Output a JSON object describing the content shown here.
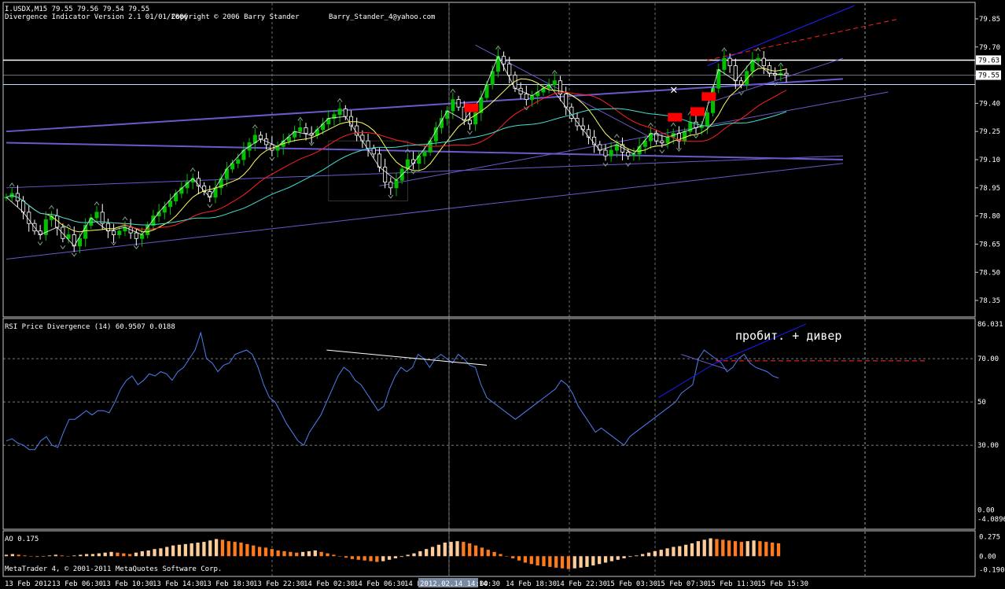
{
  "header": {
    "symbol_line": "I.USDX,M15  79.55 79.56 79.54 79.55",
    "indicator_line": "Divergence Indicator Version 2.1  01/01/2006",
    "copyright": "Copyright © 2006 Barry Stander",
    "email": "Barry_Stander_4@yahoo.com"
  },
  "footer": {
    "metatrader": "MetaTrader 4, © 2001-2011 MetaQuotes Software Corp."
  },
  "colors": {
    "background": "#000000",
    "grid": "#c8c8c8",
    "candle_up": "#00c000",
    "candle_down": "#ffffff",
    "ma_fast": "#ffff66",
    "ma_mid": "#ff2020",
    "ma_slow": "#40e0d0",
    "trend": "#6a5acd",
    "rsi": "#4f7ff0",
    "ao_up": "#ffcc99",
    "ao_down": "#ff7a1a",
    "marker": "#ff0000"
  },
  "chart_data": [
    {
      "type": "line",
      "title": "I.USDX,M15",
      "ylim": [
        78.3,
        79.9
      ],
      "y_ticks": [
        "79.85",
        "79.70",
        "79.55",
        "79.40",
        "79.25",
        "79.10",
        "78.95",
        "78.80",
        "78.65",
        "78.50",
        "78.35"
      ],
      "price_labels": [
        "79.63",
        "79.55"
      ],
      "x_labels": [
        "13 Feb 2012",
        "13 Feb 06:30",
        "13 Feb 10:30",
        "13 Feb 14:30",
        "13 Feb 18:30",
        "13 Feb 22:30",
        "14 Feb 02:30",
        "14 Feb 06:30",
        "14 F",
        "2012.02.14 14:00",
        "14:30",
        "14 Feb 18:30",
        "14 Feb 22:30",
        "15 Feb 03:30",
        "15 Feb 07:30",
        "15 Feb 11:30",
        "15 Feb 15:30"
      ],
      "close": [
        78.9,
        78.92,
        78.88,
        78.82,
        78.76,
        78.72,
        78.7,
        78.78,
        78.8,
        78.74,
        78.68,
        78.7,
        78.64,
        78.68,
        78.75,
        78.79,
        78.82,
        78.76,
        78.72,
        78.7,
        78.72,
        78.74,
        78.71,
        78.68,
        78.7,
        78.75,
        78.8,
        78.82,
        78.85,
        78.88,
        78.92,
        78.95,
        78.98,
        79.0,
        78.96,
        78.93,
        78.9,
        78.95,
        79.0,
        79.05,
        79.08,
        79.1,
        79.15,
        79.19,
        79.23,
        79.21,
        79.18,
        79.15,
        79.17,
        79.2,
        79.22,
        79.25,
        79.27,
        79.24,
        79.23,
        79.26,
        79.29,
        79.32,
        79.34,
        79.37,
        79.33,
        79.28,
        79.23,
        79.2,
        79.16,
        79.13,
        79.06,
        78.98,
        78.95,
        78.99,
        79.05,
        79.1,
        79.08,
        79.12,
        79.14,
        79.2,
        79.27,
        79.32,
        79.36,
        79.42,
        79.38,
        79.31,
        79.29,
        79.35,
        79.43,
        79.5,
        79.57,
        79.65,
        79.61,
        79.55,
        79.48,
        79.45,
        79.42,
        79.44,
        79.46,
        79.48,
        79.5,
        79.52,
        79.45,
        79.38,
        79.32,
        79.28,
        79.26,
        79.22,
        79.18,
        79.15,
        79.12,
        79.15,
        79.18,
        79.14,
        79.12,
        79.13,
        79.17,
        79.2,
        79.24,
        79.2,
        79.19,
        79.22,
        79.24,
        79.2,
        79.25,
        79.3,
        79.27,
        79.28,
        79.35,
        79.48,
        79.58,
        79.64,
        79.6,
        79.52,
        79.5,
        79.57,
        79.63,
        79.64,
        79.6,
        79.56,
        79.55,
        79.56,
        79.55
      ],
      "series": [
        {
          "name": "",
          "role": "ma_fast",
          "period": 8
        },
        {
          "name": "",
          "role": "ma_mid",
          "period": 21
        },
        {
          "name": "",
          "role": "ma_slow",
          "period": 34
        }
      ],
      "trendlines": [
        {
          "from": [
            0,
            79.25
          ],
          "to": [
            148,
            79.53
          ],
          "style": "solid",
          "width": 2
        },
        {
          "from": [
            0,
            79.19
          ],
          "to": [
            148,
            79.1
          ],
          "style": "solid",
          "width": 2
        },
        {
          "from": [
            0,
            78.57
          ],
          "to": [
            148,
            79.08
          ],
          "style": "solid",
          "width": 1
        },
        {
          "from": [
            0,
            78.95
          ],
          "to": [
            148,
            79.12
          ],
          "style": "solid",
          "width": 1
        },
        {
          "from": [
            83,
            79.71
          ],
          "to": [
            117,
            79.17
          ],
          "style": "solid",
          "width": 1
        },
        {
          "from": [
            66,
            78.96
          ],
          "to": [
            156,
            79.46
          ],
          "style": "solid",
          "width": 1
        },
        {
          "from": [
            124,
            79.4
          ],
          "to": [
            148,
            79.64
          ],
          "style": "solid",
          "width": 1
        },
        {
          "from": [
            124,
            79.6
          ],
          "to": [
            150,
            79.92
          ],
          "style": "solid",
          "width": 1
        },
        {
          "from": [
            124,
            79.63
          ],
          "to": [
            158,
            79.85
          ],
          "style": "dashed",
          "width": 1
        }
      ],
      "highlight_box": {
        "from": [
          57,
          79.2
        ],
        "to": [
          71,
          78.88
        ]
      },
      "peak_markers": [
        82,
        118,
        122,
        124
      ]
    },
    {
      "type": "line",
      "title": "RSI Price Divergence (14) 60.9507 0.0188",
      "ylim": [
        -4.0896,
        86.031
      ],
      "y_ticks": [
        "86.031",
        "70.00",
        "50",
        "30.00",
        "0.00",
        "-4.0896"
      ],
      "levels": [
        70,
        50,
        30
      ],
      "annotation": "пробит. + дивер",
      "values": [
        32,
        33,
        31,
        30,
        28,
        28,
        32,
        34,
        30,
        29,
        36,
        42,
        42,
        44,
        46,
        44,
        46,
        46,
        45,
        50,
        56,
        60,
        62,
        58,
        60,
        63,
        62,
        64,
        63,
        60,
        64,
        66,
        70,
        74,
        82,
        70,
        68,
        64,
        67,
        68,
        72,
        73,
        74,
        72,
        66,
        58,
        52,
        50,
        45,
        40,
        36,
        32,
        30,
        36,
        40,
        44,
        50,
        56,
        62,
        66,
        64,
        60,
        58,
        54,
        50,
        46,
        48,
        56,
        62,
        66,
        64,
        66,
        72,
        70,
        66,
        70,
        72,
        70,
        68,
        72,
        70,
        67,
        66,
        58,
        52,
        50,
        48,
        46,
        44,
        42,
        44,
        46,
        48,
        50,
        52,
        54,
        56,
        60,
        58,
        54,
        48,
        44,
        40,
        36,
        38,
        36,
        34,
        32,
        30,
        34,
        36,
        38,
        40,
        42,
        44,
        46,
        48,
        50,
        54,
        56,
        58,
        70,
        74,
        72,
        70,
        68,
        64,
        66,
        70,
        72,
        68,
        66,
        65,
        64,
        62,
        61
      ],
      "trendlines": [
        {
          "from": [
            56,
            74
          ],
          "to": [
            84,
            67
          ],
          "color": "#ffffff",
          "style": "solid"
        },
        {
          "from": [
            114,
            52
          ],
          "to": [
            124,
            68
          ],
          "color": "#1a1aff",
          "style": "solid"
        },
        {
          "from": [
            124,
            68
          ],
          "to": [
            140,
            86
          ],
          "color": "#1a1aff",
          "style": "solid"
        },
        {
          "from": [
            118,
            72
          ],
          "to": [
            126,
            65
          ],
          "color": "#6a5acd",
          "style": "solid"
        },
        {
          "from": [
            124,
            69
          ],
          "to": [
            162,
            69
          ],
          "color": "#ff3030",
          "style": "dashed"
        }
      ]
    },
    {
      "type": "bar",
      "title": "AO 0.175",
      "ylim": [
        -0.25,
        0.3
      ],
      "y_ticks": [
        "0.275",
        "0.00",
        "-0.190"
      ],
      "values": [
        0.02,
        0.03,
        0.02,
        0.01,
        0.0,
        -0.01,
        0.0,
        0.01,
        0.02,
        0.01,
        0.0,
        0.01,
        0.02,
        0.03,
        0.03,
        0.04,
        0.05,
        0.06,
        0.05,
        0.04,
        0.03,
        0.05,
        0.07,
        0.08,
        0.1,
        0.11,
        0.13,
        0.15,
        0.16,
        0.17,
        0.18,
        0.19,
        0.2,
        0.22,
        0.24,
        0.23,
        0.21,
        0.2,
        0.19,
        0.17,
        0.15,
        0.13,
        0.12,
        0.1,
        0.08,
        0.07,
        0.06,
        0.05,
        0.06,
        0.07,
        0.08,
        0.06,
        0.04,
        0.02,
        0.0,
        -0.02,
        -0.04,
        -0.05,
        -0.06,
        -0.07,
        -0.08,
        -0.07,
        -0.05,
        -0.03,
        -0.01,
        0.02,
        0.04,
        0.07,
        0.1,
        0.13,
        0.16,
        0.19,
        0.2,
        0.21,
        0.2,
        0.18,
        0.15,
        0.12,
        0.09,
        0.06,
        0.03,
        0.0,
        -0.03,
        -0.06,
        -0.09,
        -0.11,
        -0.13,
        -0.14,
        -0.15,
        -0.16,
        -0.17,
        -0.18,
        -0.17,
        -0.16,
        -0.15,
        -0.13,
        -0.11,
        -0.09,
        -0.07,
        -0.05,
        -0.03,
        -0.01,
        0.01,
        0.03,
        0.05,
        0.07,
        0.09,
        0.11,
        0.13,
        0.14,
        0.16,
        0.18,
        0.21,
        0.23,
        0.25,
        0.24,
        0.23,
        0.22,
        0.21,
        0.2,
        0.21,
        0.22,
        0.21,
        0.2,
        0.19,
        0.18
      ]
    }
  ]
}
